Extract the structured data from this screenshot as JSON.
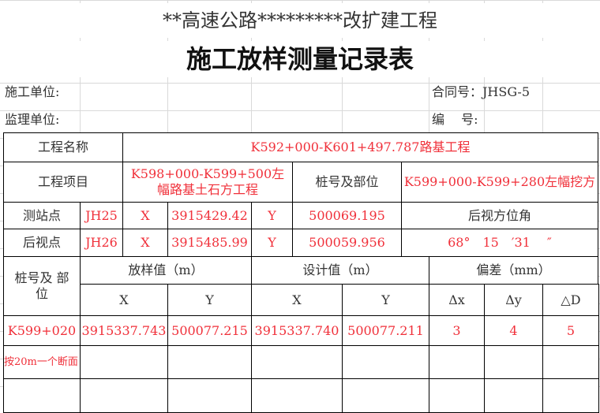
{
  "title_sub": "**高速公路*********改扩建工程",
  "title_main": "施工放样测量记录表",
  "header": {
    "construction_unit": "施工单位:",
    "contract_no": "合同号：JHSG-5",
    "supervision_unit": "监理单位:",
    "serial_no": "编　 号:"
  },
  "project": {
    "name_label": "工程名称",
    "name_value": "K592+000-K601+497.787路基工程",
    "item_label": "工程项目",
    "item_value": "K598+000-K599+500左幅路基土石方工程",
    "pile_label": "桩号及部位",
    "pile_value": "K599+000-K599+280左幅挖方"
  },
  "station": {
    "label": "测站点",
    "id": "JH25",
    "x_label": "X",
    "x": "3915429.42",
    "y_label": "Y",
    "y": "500069.195",
    "azimuth_label": "后视方位角"
  },
  "backsight": {
    "label": "后视点",
    "id": "JH26",
    "x_label": "X",
    "x": "3915485.99",
    "y_label": "Y",
    "y": "500059.956",
    "azimuth": "68°　15　′31　 ″"
  },
  "table": {
    "col_pile": "桩号及 部位",
    "col_stakeout": "放样值（m）",
    "col_design": "设计值（m）",
    "col_dev": "偏差（mm）",
    "sub": [
      "X",
      "Y",
      "X",
      "Y",
      "Δx",
      "Δy",
      "△D"
    ],
    "rows": [
      [
        "K599+020",
        "3915337.743",
        "500077.215",
        "3915337.740",
        "500077.211",
        "3",
        "4",
        "5"
      ]
    ],
    "note": "按20m一个断面"
  }
}
